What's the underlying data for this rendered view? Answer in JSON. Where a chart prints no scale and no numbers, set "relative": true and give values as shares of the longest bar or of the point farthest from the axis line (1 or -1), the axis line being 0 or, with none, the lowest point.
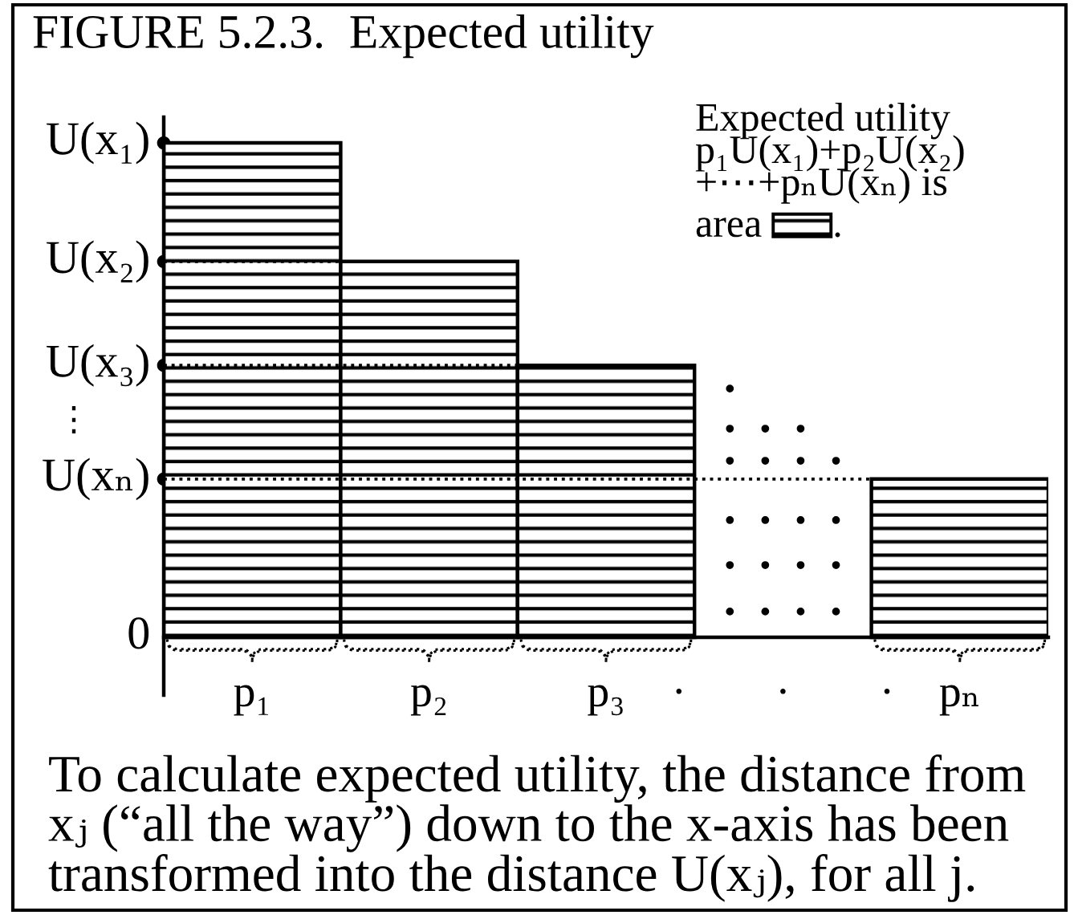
{
  "chart_data": {
    "type": "bar",
    "title": "FIGURE 5.2.3.  Expected utility",
    "relative": true,
    "categories": [
      "p₁",
      "p₂",
      "p₃",
      "·        ·        ·",
      "pₙ"
    ],
    "values": [
      1,
      0.76,
      0.55,
      null,
      0.32
    ],
    "color": "#000000",
    "annotations": [
      "U(x₁)",
      "U(x₂)",
      "U(x₃)",
      "U(xₙ)",
      "0",
      "Expected utility\np₁U(x₁)+p₂U(x₂)\n+⋯+pₙU(xₙ) is",
      "area",
      ".",
      "⋮",
      "To calculate expected utility, the distance from\nxⱼ (“all the way”) down to the x-axis has been\ntransformed into the distance U(xⱼ), for all j."
    ]
  }
}
